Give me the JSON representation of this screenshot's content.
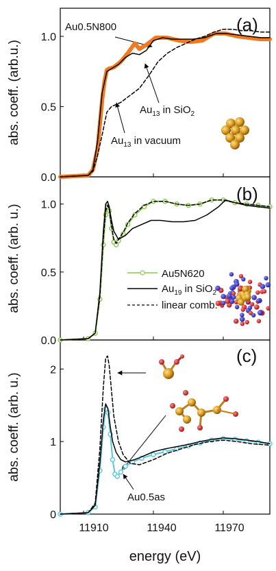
{
  "figure": {
    "xlabel": "energy (eV)",
    "x_tick_labels": [
      "11910",
      "11940",
      "11970"
    ]
  },
  "chart_data": [
    {
      "type": "line",
      "panel_label": "(a)",
      "ylabel": "abs. coeff. (arb.u.)",
      "xlim": [
        11900,
        11990
      ],
      "ylim": [
        0,
        1.2
      ],
      "y_ticks": [
        "0.0",
        "0.5",
        "1.0"
      ],
      "series": [
        {
          "name": "Au0.5N800",
          "color": "#f07a22",
          "style": "thick",
          "x": [
            11900,
            11912,
            11914,
            11916,
            11918,
            11919,
            11920,
            11921,
            11923,
            11926,
            11929,
            11932,
            11934,
            11937,
            11941,
            11946,
            11951,
            11956,
            11961,
            11966,
            11971,
            11976,
            11981,
            11986,
            11990
          ],
          "y": [
            0.0,
            0.01,
            0.05,
            0.2,
            0.55,
            0.68,
            0.76,
            0.77,
            0.78,
            0.82,
            0.88,
            0.95,
            0.91,
            0.94,
            0.99,
            0.99,
            0.97,
            0.96,
            0.97,
            1.02,
            1.02,
            1.0,
            0.99,
            0.98,
            0.98
          ]
        },
        {
          "name": "Au13 in SiO2",
          "color": "#000000",
          "style": "solid",
          "x": [
            11900,
            11912,
            11914,
            11916,
            11918,
            11920,
            11922,
            11925,
            11928,
            11931,
            11934,
            11937,
            11940,
            11944,
            11948,
            11952,
            11957,
            11962,
            11967,
            11971,
            11976,
            11981,
            11986,
            11990
          ],
          "y": [
            0.0,
            0.01,
            0.05,
            0.25,
            0.6,
            0.75,
            0.77,
            0.8,
            0.85,
            0.88,
            0.87,
            0.9,
            0.97,
            0.99,
            0.98,
            0.98,
            0.98,
            0.99,
            1.02,
            1.02,
            1.01,
            1.0,
            0.99,
            0.99
          ]
        },
        {
          "name": "Au13 in vacuum",
          "color": "#000000",
          "style": "dashed",
          "x": [
            11900,
            11912,
            11914,
            11916,
            11918,
            11920,
            11922,
            11926,
            11930,
            11934,
            11938,
            11942,
            11946,
            11950,
            11954,
            11958,
            11962,
            11966,
            11970,
            11974,
            11978,
            11982,
            11986,
            11990
          ],
          "y": [
            0.0,
            0.01,
            0.04,
            0.15,
            0.3,
            0.46,
            0.5,
            0.53,
            0.58,
            0.63,
            0.72,
            0.82,
            0.88,
            0.92,
            0.95,
            0.98,
            1.0,
            1.03,
            1.05,
            1.05,
            1.04,
            1.04,
            1.03,
            1.03
          ]
        }
      ],
      "annotations": [
        {
          "text": "Au0.5N800",
          "kind": "plain"
        },
        {
          "text": "Au13 in SiO2",
          "base": "Au",
          "sub1": "13",
          "mid": " in SiO",
          "sub2": "2"
        },
        {
          "text": "Au13 in vacuum",
          "base": "Au",
          "sub1": "13",
          "mid": " in vacuum",
          "sub2": ""
        }
      ]
    },
    {
      "type": "line",
      "panel_label": "(b)",
      "ylabel": "abs. coeff. (arb. u.)",
      "xlim": [
        11900,
        11990
      ],
      "ylim": [
        0,
        1.2
      ],
      "y_ticks": [
        "0.0",
        "0.5",
        "1.0"
      ],
      "series": [
        {
          "name": "Au5N620",
          "color": "#8cc84b",
          "style": "markers",
          "x": [
            11900,
            11912,
            11915,
            11917,
            11918.5,
            11919.5,
            11920.3,
            11921,
            11922,
            11923,
            11924,
            11925,
            11927,
            11929,
            11932,
            11936,
            11940,
            11945,
            11950,
            11955,
            11960,
            11965,
            11970,
            11975,
            11980,
            11985,
            11990
          ],
          "y": [
            0.0,
            0.01,
            0.05,
            0.3,
            0.7,
            0.92,
            0.98,
            0.95,
            0.82,
            0.72,
            0.7,
            0.73,
            0.78,
            0.85,
            0.92,
            0.98,
            1.02,
            1.02,
            1.0,
            0.99,
            1.0,
            1.03,
            1.03,
            1.01,
            1.0,
            0.99,
            0.98
          ]
        },
        {
          "name": "Au19 in SiO2",
          "color": "#000000",
          "style": "solid",
          "x": [
            11900,
            11912,
            11915,
            11917,
            11918.5,
            11919.5,
            11920.3,
            11921,
            11922,
            11923,
            11925,
            11928,
            11931,
            11935,
            11939,
            11943,
            11948,
            11953,
            11958,
            11963,
            11968,
            11971,
            11975,
            11980,
            11985,
            11990
          ],
          "y": [
            0.0,
            0.01,
            0.05,
            0.35,
            0.8,
            1.0,
            1.02,
            0.98,
            0.88,
            0.8,
            0.74,
            0.77,
            0.82,
            0.85,
            0.88,
            0.88,
            0.87,
            0.87,
            0.88,
            0.92,
            0.98,
            1.03,
            1.01,
            0.99,
            0.98,
            0.97
          ]
        },
        {
          "name": "linear comb.",
          "color": "#000000",
          "style": "dashed",
          "x": [
            11900,
            11912,
            11915,
            11917,
            11918.5,
            11919.5,
            11920.3,
            11921,
            11922,
            11923,
            11924,
            11925,
            11927,
            11929,
            11932,
            11936,
            11940,
            11945,
            11950,
            11955,
            11960,
            11965,
            11970,
            11975,
            11980,
            11985,
            11990
          ],
          "y": [
            0.0,
            0.01,
            0.05,
            0.32,
            0.75,
            0.95,
            0.99,
            0.96,
            0.84,
            0.74,
            0.71,
            0.74,
            0.79,
            0.86,
            0.93,
            0.99,
            1.02,
            1.02,
            1.0,
            0.99,
            1.0,
            1.03,
            1.03,
            1.01,
            1.0,
            0.99,
            0.98
          ]
        }
      ],
      "legend": [
        {
          "base": "Au5N620",
          "sub1": "",
          "mid": "",
          "sub2": "",
          "color": "#8cc84b",
          "style": "markers"
        },
        {
          "base": "Au",
          "sub1": "19",
          "mid": " in SiO",
          "sub2": "2",
          "color": "#000000",
          "style": "solid"
        },
        {
          "base": "linear comb.",
          "sub1": "",
          "mid": "",
          "sub2": "",
          "color": "#000000",
          "style": "dashed"
        }
      ]
    },
    {
      "type": "line",
      "panel_label": "(c)",
      "ylabel": "abs. coeff. (arb. u.)",
      "xlim": [
        11900,
        11990
      ],
      "ylim": [
        0,
        2.4
      ],
      "y_ticks": [
        "0",
        "1",
        "2"
      ],
      "series": [
        {
          "name": "Au0.5as",
          "color": "#5ac8dc",
          "style": "markers",
          "x": [
            11900,
            11912,
            11915,
            11917,
            11918.5,
            11919.5,
            11920.5,
            11921.5,
            11922.5,
            11923.5,
            11924.5,
            11926,
            11928,
            11931,
            11935,
            11940,
            11945,
            11950,
            11955,
            11960,
            11965,
            11970,
            11975,
            11980,
            11985,
            11990
          ],
          "y": [
            0.0,
            0.02,
            0.1,
            0.6,
            1.2,
            1.45,
            1.4,
            1.1,
            0.75,
            0.55,
            0.52,
            0.58,
            0.66,
            0.72,
            0.77,
            0.82,
            0.86,
            0.9,
            0.94,
            0.98,
            1.02,
            1.04,
            1.03,
            1.01,
            0.99,
            0.97
          ]
        },
        {
          "name": "",
          "color": "#000000",
          "style": "solid",
          "x": [
            11900,
            11912,
            11915,
            11917,
            11918.5,
            11919.5,
            11920.5,
            11921.5,
            11922.5,
            11924,
            11926,
            11928,
            11931,
            11935,
            11940,
            11945,
            11950,
            11955,
            11960,
            11965,
            11970,
            11975,
            11980,
            11985,
            11990
          ],
          "y": [
            0.0,
            0.02,
            0.12,
            0.7,
            1.3,
            1.52,
            1.45,
            1.2,
            1.0,
            0.85,
            0.75,
            0.72,
            0.74,
            0.79,
            0.86,
            0.9,
            0.93,
            0.96,
            1.0,
            1.03,
            1.05,
            1.04,
            1.02,
            1.0,
            0.97
          ]
        },
        {
          "name": "",
          "color": "#000000",
          "style": "dashed",
          "x": [
            11900,
            11912,
            11915,
            11917,
            11918.5,
            11919.5,
            11920.3,
            11921,
            11922,
            11923,
            11925,
            11927,
            11930,
            11934,
            11940,
            11946,
            11952,
            11958,
            11964,
            11970,
            11976,
            11982,
            11990
          ],
          "y": [
            0.0,
            0.02,
            0.15,
            0.9,
            1.75,
            2.15,
            2.18,
            2.05,
            1.7,
            1.35,
            1.0,
            0.82,
            0.7,
            0.68,
            0.75,
            0.84,
            0.9,
            0.96,
            1.0,
            1.02,
            1.0,
            0.97,
            0.95
          ]
        }
      ],
      "annotations": [
        {
          "text": "Au0.5as",
          "kind": "plain"
        }
      ]
    }
  ]
}
